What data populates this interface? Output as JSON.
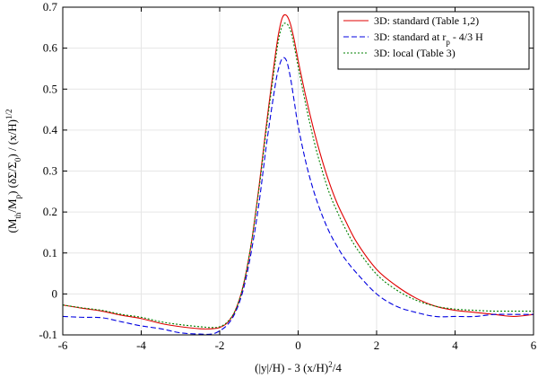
{
  "chart_data": {
    "type": "line",
    "title": "",
    "xlabel_parts": [
      "(|y|/H) - 3 (x/H)",
      "2",
      "/4"
    ],
    "ylabel_parts": [
      "(M",
      "th",
      "/M",
      "p",
      ") (δΣ/Σ",
      "0",
      ") / (x/H)",
      "1/2"
    ],
    "xlim": [
      -6,
      6
    ],
    "ylim": [
      -0.1,
      0.7
    ],
    "xticks": [
      -6,
      -4,
      -2,
      0,
      2,
      4,
      6
    ],
    "yticks": [
      -0.1,
      0,
      0.1,
      0.2,
      0.3,
      0.4,
      0.5,
      0.6,
      0.7
    ],
    "grid": true,
    "legend_position": "top-right",
    "series": [
      {
        "name_parts": [
          "3D: standard (Table 1,2)"
        ],
        "color": "#e00000",
        "dash": "solid",
        "x": [
          -6,
          -5.5,
          -5,
          -4.5,
          -4,
          -3.5,
          -3,
          -2.5,
          -2.2,
          -2,
          -1.8,
          -1.6,
          -1.4,
          -1.2,
          -1,
          -0.8,
          -0.6,
          -0.5,
          -0.4,
          -0.3,
          -0.2,
          -0.1,
          0,
          0.2,
          0.4,
          0.6,
          0.8,
          1,
          1.2,
          1.5,
          2,
          2.5,
          3,
          3.5,
          4,
          4.5,
          5,
          5.5,
          6
        ],
        "y": [
          -0.027,
          -0.035,
          -0.042,
          -0.052,
          -0.06,
          -0.072,
          -0.08,
          -0.085,
          -0.085,
          -0.082,
          -0.07,
          -0.04,
          0.02,
          0.12,
          0.26,
          0.42,
          0.57,
          0.635,
          0.675,
          0.68,
          0.66,
          0.62,
          0.57,
          0.48,
          0.4,
          0.33,
          0.27,
          0.22,
          0.18,
          0.125,
          0.06,
          0.02,
          -0.01,
          -0.03,
          -0.04,
          -0.045,
          -0.05,
          -0.055,
          -0.05
        ]
      },
      {
        "name_parts": [
          "3D: standard at r",
          "p",
          " - 4/3 H"
        ],
        "color": "#0000e0",
        "dash": "6,3",
        "x": [
          -6,
          -5.5,
          -5,
          -4.5,
          -4,
          -3.5,
          -3,
          -2.5,
          -2.2,
          -2,
          -1.8,
          -1.6,
          -1.4,
          -1.2,
          -1,
          -0.8,
          -0.6,
          -0.5,
          -0.4,
          -0.3,
          -0.2,
          -0.1,
          0,
          0.2,
          0.4,
          0.6,
          0.8,
          1,
          1.2,
          1.5,
          2,
          2.5,
          3,
          3.5,
          4,
          4.5,
          5,
          5.5,
          6
        ],
        "y": [
          -0.055,
          -0.057,
          -0.058,
          -0.068,
          -0.078,
          -0.085,
          -0.095,
          -0.098,
          -0.098,
          -0.09,
          -0.075,
          -0.045,
          0.01,
          0.1,
          0.22,
          0.37,
          0.5,
          0.55,
          0.575,
          0.57,
          0.53,
          0.47,
          0.41,
          0.32,
          0.25,
          0.195,
          0.15,
          0.115,
          0.085,
          0.05,
          0.0,
          -0.03,
          -0.045,
          -0.055,
          -0.055,
          -0.055,
          -0.05,
          -0.05,
          -0.05
        ]
      },
      {
        "name_parts": [
          "3D: local (Table 3)"
        ],
        "color": "#008000",
        "dash": "2,2",
        "x": [
          -6,
          -5.5,
          -5,
          -4.5,
          -4,
          -3.5,
          -3,
          -2.5,
          -2.2,
          -2,
          -1.8,
          -1.6,
          -1.4,
          -1.2,
          -1,
          -0.8,
          -0.6,
          -0.5,
          -0.4,
          -0.3,
          -0.2,
          -0.1,
          0,
          0.2,
          0.4,
          0.6,
          0.8,
          1,
          1.2,
          1.5,
          2,
          2.5,
          3,
          3.5,
          4,
          4.5,
          5,
          5.5,
          6
        ],
        "y": [
          -0.027,
          -0.034,
          -0.04,
          -0.05,
          -0.057,
          -0.068,
          -0.075,
          -0.08,
          -0.082,
          -0.08,
          -0.068,
          -0.04,
          0.02,
          0.12,
          0.255,
          0.41,
          0.555,
          0.62,
          0.655,
          0.66,
          0.645,
          0.605,
          0.555,
          0.46,
          0.375,
          0.305,
          0.245,
          0.2,
          0.16,
          0.11,
          0.048,
          0.01,
          -0.015,
          -0.03,
          -0.037,
          -0.04,
          -0.042,
          -0.042,
          -0.042
        ]
      }
    ]
  }
}
